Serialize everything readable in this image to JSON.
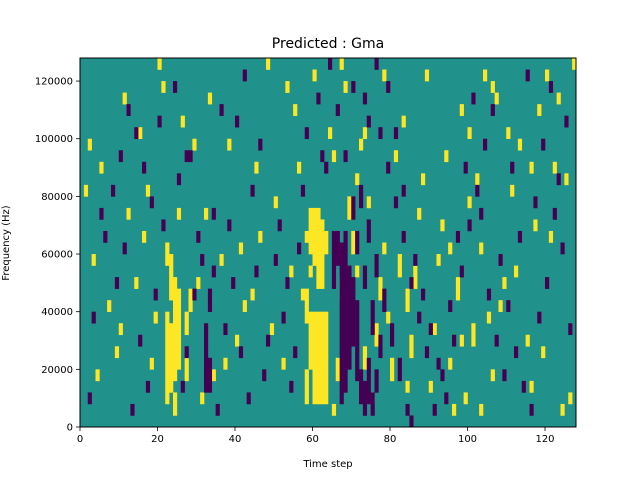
{
  "chart_data": {
    "type": "heatmap",
    "title": "Predicted : Gma",
    "xlabel": "Time step",
    "ylabel": "Frequency (Hz)",
    "xlim": [
      0,
      128
    ],
    "ylim": [
      0,
      128000
    ],
    "x_ticks": [
      {
        "value": 0,
        "label": "0"
      },
      {
        "value": 20,
        "label": "20"
      },
      {
        "value": 40,
        "label": "40"
      },
      {
        "value": 60,
        "label": "60"
      },
      {
        "value": 80,
        "label": "80"
      },
      {
        "value": 100,
        "label": "100"
      },
      {
        "value": 120,
        "label": "120"
      }
    ],
    "y_ticks": [
      {
        "value": 0,
        "label": "0"
      },
      {
        "value": 20000,
        "label": "20000"
      },
      {
        "value": 40000,
        "label": "40000"
      },
      {
        "value": 60000,
        "label": "60000"
      },
      {
        "value": 80000,
        "label": "80000"
      },
      {
        "value": 100000,
        "label": "100000"
      },
      {
        "value": 120000,
        "label": "120000"
      }
    ],
    "grid": false,
    "colormap": {
      "background_value": 0,
      "high_value": 1,
      "low_value": -1,
      "background_color": "#21918c",
      "high_color": "#fde725",
      "low_color": "#440154"
    },
    "cell_height_hz": 4000,
    "high_cells": [
      [
        60,
        8000,
        40000
      ],
      [
        61,
        8000,
        40000
      ],
      [
        62,
        8000,
        40000
      ],
      [
        63,
        8000,
        40000
      ],
      [
        59,
        20000,
        40000
      ],
      [
        59,
        60000,
        76000
      ],
      [
        60,
        56000,
        76000
      ],
      [
        61,
        48000,
        76000
      ],
      [
        62,
        48000,
        72000
      ],
      [
        63,
        60000,
        68000
      ],
      [
        58,
        8000,
        20000
      ],
      [
        58,
        36000,
        48000
      ],
      [
        59,
        52000,
        56000
      ],
      [
        58,
        64000,
        68000
      ],
      [
        22,
        8000,
        40000
      ],
      [
        23,
        12000,
        36000
      ],
      [
        24,
        16000,
        52000
      ],
      [
        25,
        20000,
        48000
      ],
      [
        23,
        44000,
        60000
      ],
      [
        22,
        56000,
        64000
      ],
      [
        24,
        4000,
        12000
      ],
      [
        27,
        32000,
        40000
      ],
      [
        27,
        16000,
        24000
      ],
      [
        28,
        40000,
        48000
      ],
      [
        66,
        16000,
        24000
      ],
      [
        67,
        44000,
        52000
      ],
      [
        69,
        72000,
        80000
      ],
      [
        70,
        60000,
        68000
      ],
      [
        71,
        84000,
        88000
      ],
      [
        73,
        20000,
        28000
      ],
      [
        75,
        8000,
        12000
      ],
      [
        76,
        28000,
        36000
      ],
      [
        77,
        44000,
        52000
      ],
      [
        78,
        60000,
        64000
      ],
      [
        80,
        16000,
        24000
      ],
      [
        82,
        52000,
        60000
      ],
      [
        84,
        40000,
        48000
      ],
      [
        85,
        24000,
        32000
      ],
      [
        86,
        48000,
        56000
      ],
      [
        90,
        12000,
        16000
      ],
      [
        92,
        56000,
        60000
      ],
      [
        95,
        20000,
        24000
      ],
      [
        97,
        44000,
        52000
      ],
      [
        99,
        8000,
        12000
      ],
      [
        101,
        28000,
        36000
      ],
      [
        103,
        60000,
        64000
      ],
      [
        106,
        16000,
        20000
      ],
      [
        108,
        40000,
        44000
      ],
      [
        112,
        52000,
        56000
      ],
      [
        116,
        12000,
        16000
      ],
      [
        119,
        24000,
        28000
      ],
      [
        121,
        64000,
        68000
      ],
      [
        124,
        4000,
        8000
      ],
      [
        126,
        8000,
        12000
      ],
      [
        125,
        84000,
        88000
      ],
      [
        123,
        112000,
        116000
      ],
      [
        120,
        120000,
        124000
      ],
      [
        116,
        88000,
        92000
      ],
      [
        110,
        100000,
        104000
      ],
      [
        104,
        120000,
        124000
      ],
      [
        98,
        108000,
        112000
      ],
      [
        94,
        92000,
        96000
      ],
      [
        88,
        84000,
        88000
      ],
      [
        83,
        104000,
        108000
      ],
      [
        78,
        120000,
        124000
      ],
      [
        72,
        96000,
        100000
      ],
      [
        68,
        116000,
        120000
      ],
      [
        65,
        92000,
        96000
      ],
      [
        60,
        120000,
        124000
      ],
      [
        55,
        108000,
        112000
      ],
      [
        50,
        76000,
        80000
      ],
      [
        46,
        64000,
        68000
      ],
      [
        44,
        44000,
        48000
      ],
      [
        40,
        28000,
        32000
      ],
      [
        36,
        56000,
        60000
      ],
      [
        32,
        72000,
        76000
      ],
      [
        29,
        96000,
        100000
      ],
      [
        26,
        104000,
        108000
      ],
      [
        21,
        116000,
        120000
      ],
      [
        17,
        80000,
        84000
      ],
      [
        15,
        100000,
        104000
      ],
      [
        12,
        72000,
        76000
      ],
      [
        10,
        32000,
        36000
      ],
      [
        7,
        40000,
        44000
      ],
      [
        5,
        88000,
        92000
      ],
      [
        3,
        56000,
        60000
      ],
      [
        2,
        96000,
        100000
      ],
      [
        4,
        16000,
        20000
      ],
      [
        1,
        80000,
        84000
      ],
      [
        18,
        20000,
        24000
      ],
      [
        16,
        64000,
        68000
      ],
      [
        30,
        48000,
        52000
      ],
      [
        34,
        16000,
        20000
      ],
      [
        38,
        96000,
        100000
      ],
      [
        42,
        40000,
        44000
      ],
      [
        48,
        124000,
        128000
      ],
      [
        52,
        20000,
        24000
      ],
      [
        54,
        52000,
        56000
      ],
      [
        56,
        88000,
        92000
      ],
      [
        64,
        100000,
        104000
      ],
      [
        74,
        76000,
        80000
      ],
      [
        79,
        36000,
        40000
      ],
      [
        87,
        72000,
        76000
      ],
      [
        91,
        32000,
        36000
      ],
      [
        93,
        68000,
        72000
      ],
      [
        96,
        4000,
        8000
      ],
      [
        100,
        100000,
        104000
      ],
      [
        102,
        84000,
        88000
      ],
      [
        105,
        36000,
        40000
      ],
      [
        107,
        112000,
        116000
      ],
      [
        109,
        48000,
        52000
      ],
      [
        111,
        80000,
        84000
      ],
      [
        113,
        96000,
        100000
      ],
      [
        115,
        28000,
        32000
      ],
      [
        117,
        68000,
        72000
      ],
      [
        118,
        108000,
        112000
      ],
      [
        122,
        88000,
        92000
      ],
      [
        127,
        124000,
        128000
      ],
      [
        14,
        48000,
        52000
      ],
      [
        9,
        24000,
        28000
      ],
      [
        11,
        112000,
        116000
      ],
      [
        19,
        36000,
        40000
      ],
      [
        20,
        124000,
        128000
      ],
      [
        25,
        72000,
        76000
      ],
      [
        31,
        8000,
        12000
      ],
      [
        33,
        112000,
        116000
      ],
      [
        37,
        20000,
        24000
      ],
      [
        41,
        60000,
        64000
      ],
      [
        45,
        88000,
        92000
      ],
      [
        49,
        32000,
        36000
      ],
      [
        53,
        116000,
        120000
      ],
      [
        57,
        44000,
        48000
      ],
      [
        65,
        4000,
        8000
      ],
      [
        67,
        124000,
        128000
      ],
      [
        71,
        52000,
        56000
      ],
      [
        73,
        100000,
        104000
      ],
      [
        81,
        92000,
        96000
      ],
      [
        84,
        12000,
        16000
      ],
      [
        89,
        120000,
        124000
      ],
      [
        95,
        60000,
        64000
      ],
      [
        98,
        28000,
        32000
      ],
      [
        100,
        76000,
        80000
      ],
      [
        103,
        4000,
        8000
      ],
      [
        106,
        116000,
        120000
      ]
    ],
    "low_cells": [
      [
        67,
        8000,
        64000
      ],
      [
        68,
        12000,
        68000
      ],
      [
        69,
        20000,
        56000
      ],
      [
        70,
        28000,
        52000
      ],
      [
        71,
        16000,
        44000
      ],
      [
        65,
        48000,
        68000
      ],
      [
        66,
        56000,
        68000
      ],
      [
        72,
        8000,
        20000
      ],
      [
        73,
        4000,
        16000
      ],
      [
        74,
        8000,
        24000
      ],
      [
        75,
        4000,
        12000
      ],
      [
        76,
        12000,
        20000
      ],
      [
        77,
        24000,
        32000
      ],
      [
        75,
        32000,
        44000
      ],
      [
        73,
        48000,
        56000
      ],
      [
        71,
        60000,
        68000
      ],
      [
        70,
        72000,
        80000
      ],
      [
        72,
        76000,
        84000
      ],
      [
        74,
        64000,
        72000
      ],
      [
        76,
        52000,
        60000
      ],
      [
        78,
        40000,
        48000
      ],
      [
        80,
        28000,
        36000
      ],
      [
        82,
        16000,
        24000
      ],
      [
        84,
        4000,
        8000
      ],
      [
        85,
        0,
        4000
      ],
      [
        32,
        12000,
        28000
      ],
      [
        33,
        12000,
        24000
      ],
      [
        32,
        28000,
        36000
      ],
      [
        33,
        40000,
        48000
      ],
      [
        34,
        52000,
        56000
      ],
      [
        26,
        12000,
        16000
      ],
      [
        27,
        24000,
        28000
      ],
      [
        29,
        44000,
        48000
      ],
      [
        31,
        56000,
        60000
      ],
      [
        30,
        64000,
        68000
      ],
      [
        25,
        84000,
        88000
      ],
      [
        27,
        92000,
        96000
      ],
      [
        21,
        68000,
        72000
      ],
      [
        19,
        44000,
        48000
      ],
      [
        17,
        12000,
        16000
      ],
      [
        15,
        28000,
        32000
      ],
      [
        13,
        4000,
        8000
      ],
      [
        11,
        60000,
        64000
      ],
      [
        9,
        48000,
        52000
      ],
      [
        6,
        64000,
        68000
      ],
      [
        3,
        36000,
        40000
      ],
      [
        2,
        8000,
        12000
      ],
      [
        5,
        72000,
        76000
      ],
      [
        8,
        80000,
        84000
      ],
      [
        10,
        92000,
        96000
      ],
      [
        12,
        108000,
        112000
      ],
      [
        14,
        100000,
        104000
      ],
      [
        16,
        88000,
        92000
      ],
      [
        18,
        76000,
        80000
      ],
      [
        20,
        104000,
        108000
      ],
      [
        24,
        116000,
        120000
      ],
      [
        28,
        92000,
        96000
      ],
      [
        34,
        72000,
        76000
      ],
      [
        36,
        108000,
        112000
      ],
      [
        38,
        68000,
        72000
      ],
      [
        40,
        104000,
        108000
      ],
      [
        42,
        120000,
        124000
      ],
      [
        44,
        80000,
        84000
      ],
      [
        46,
        96000,
        100000
      ],
      [
        48,
        28000,
        32000
      ],
      [
        50,
        56000,
        60000
      ],
      [
        52,
        36000,
        40000
      ],
      [
        54,
        12000,
        16000
      ],
      [
        56,
        60000,
        64000
      ],
      [
        58,
        100000,
        104000
      ],
      [
        61,
        112000,
        116000
      ],
      [
        63,
        88000,
        92000
      ],
      [
        64,
        124000,
        128000
      ],
      [
        66,
        108000,
        112000
      ],
      [
        68,
        92000,
        96000
      ],
      [
        70,
        116000,
        120000
      ],
      [
        74,
        104000,
        108000
      ],
      [
        77,
        100000,
        104000
      ],
      [
        79,
        88000,
        92000
      ],
      [
        81,
        76000,
        80000
      ],
      [
        83,
        64000,
        68000
      ],
      [
        86,
        56000,
        60000
      ],
      [
        88,
        44000,
        48000
      ],
      [
        90,
        32000,
        36000
      ],
      [
        92,
        20000,
        24000
      ],
      [
        94,
        8000,
        12000
      ],
      [
        96,
        28000,
        32000
      ],
      [
        98,
        52000,
        56000
      ],
      [
        100,
        68000,
        72000
      ],
      [
        102,
        80000,
        84000
      ],
      [
        104,
        96000,
        100000
      ],
      [
        106,
        108000,
        112000
      ],
      [
        108,
        56000,
        60000
      ],
      [
        110,
        40000,
        44000
      ],
      [
        112,
        24000,
        28000
      ],
      [
        114,
        12000,
        16000
      ],
      [
        116,
        4000,
        8000
      ],
      [
        118,
        36000,
        40000
      ],
      [
        120,
        48000,
        52000
      ],
      [
        122,
        72000,
        76000
      ],
      [
        124,
        60000,
        64000
      ],
      [
        126,
        32000,
        36000
      ],
      [
        125,
        104000,
        108000
      ],
      [
        123,
        84000,
        88000
      ],
      [
        121,
        116000,
        120000
      ],
      [
        119,
        96000,
        100000
      ],
      [
        117,
        76000,
        80000
      ],
      [
        115,
        120000,
        124000
      ],
      [
        113,
        64000,
        68000
      ],
      [
        111,
        88000,
        92000
      ],
      [
        109,
        16000,
        20000
      ],
      [
        107,
        28000,
        32000
      ],
      [
        105,
        44000,
        48000
      ],
      [
        103,
        72000,
        76000
      ],
      [
        101,
        112000,
        116000
      ],
      [
        99,
        88000,
        92000
      ],
      [
        97,
        64000,
        68000
      ],
      [
        95,
        40000,
        44000
      ],
      [
        93,
        16000,
        20000
      ],
      [
        91,
        4000,
        8000
      ],
      [
        89,
        24000,
        28000
      ],
      [
        87,
        36000,
        40000
      ],
      [
        85,
        48000,
        52000
      ],
      [
        83,
        80000,
        84000
      ],
      [
        81,
        100000,
        104000
      ],
      [
        79,
        116000,
        120000
      ],
      [
        76,
        124000,
        128000
      ],
      [
        73,
        112000,
        116000
      ],
      [
        62,
        92000,
        96000
      ],
      [
        57,
        80000,
        84000
      ],
      [
        55,
        24000,
        28000
      ],
      [
        53,
        48000,
        52000
      ],
      [
        51,
        68000,
        72000
      ],
      [
        47,
        16000,
        20000
      ],
      [
        45,
        52000,
        56000
      ],
      [
        43,
        8000,
        12000
      ],
      [
        41,
        24000,
        28000
      ],
      [
        39,
        48000,
        52000
      ],
      [
        37,
        32000,
        36000
      ],
      [
        35,
        4000,
        8000
      ]
    ]
  }
}
